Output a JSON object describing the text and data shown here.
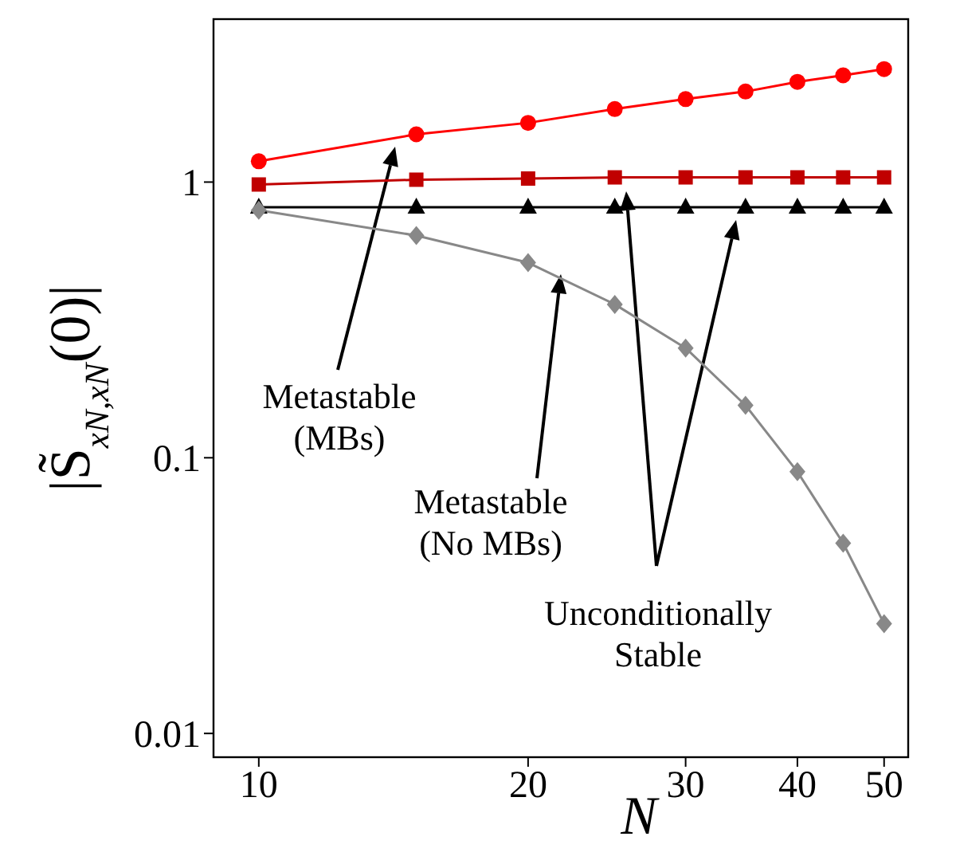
{
  "chart_data": {
    "type": "line",
    "xlabel": "N",
    "ylabel": "|S̃$_{xN,xN}$(0)|",
    "xlim": [
      8.9,
      53.2
    ],
    "ylim": [
      0.0082,
      3.9
    ],
    "xticks": [
      10,
      20,
      30,
      40,
      50
    ],
    "yticks": [
      0.01,
      0.1,
      1
    ],
    "log": "xy",
    "x": [
      10,
      15,
      20,
      25,
      30,
      35,
      40,
      45,
      50
    ],
    "series": [
      {
        "color": "#ff0000",
        "marker": "circle",
        "values": [
          1.19,
          1.49,
          1.64,
          1.84,
          2.0,
          2.13,
          2.31,
          2.44,
          2.57
        ]
      },
      {
        "color": "#c00000",
        "marker": "square",
        "values": [
          0.98,
          1.02,
          1.03,
          1.04,
          1.04,
          1.04,
          1.04,
          1.04,
          1.04
        ]
      },
      {
        "color": "#000000",
        "marker": "triangle",
        "values": [
          0.81,
          0.81,
          0.81,
          0.81,
          0.81,
          0.81,
          0.81,
          0.81,
          0.81
        ]
      },
      {
        "color": "#888888",
        "marker": "diamond",
        "values": [
          0.79,
          0.64,
          0.51,
          0.36,
          0.25,
          0.155,
          0.089,
          0.049,
          0.025
        ]
      }
    ],
    "annotations": [
      "Metastable\n(MBs)",
      "Metastable\n(No MBs)",
      "Unconditionally\nStable"
    ]
  }
}
